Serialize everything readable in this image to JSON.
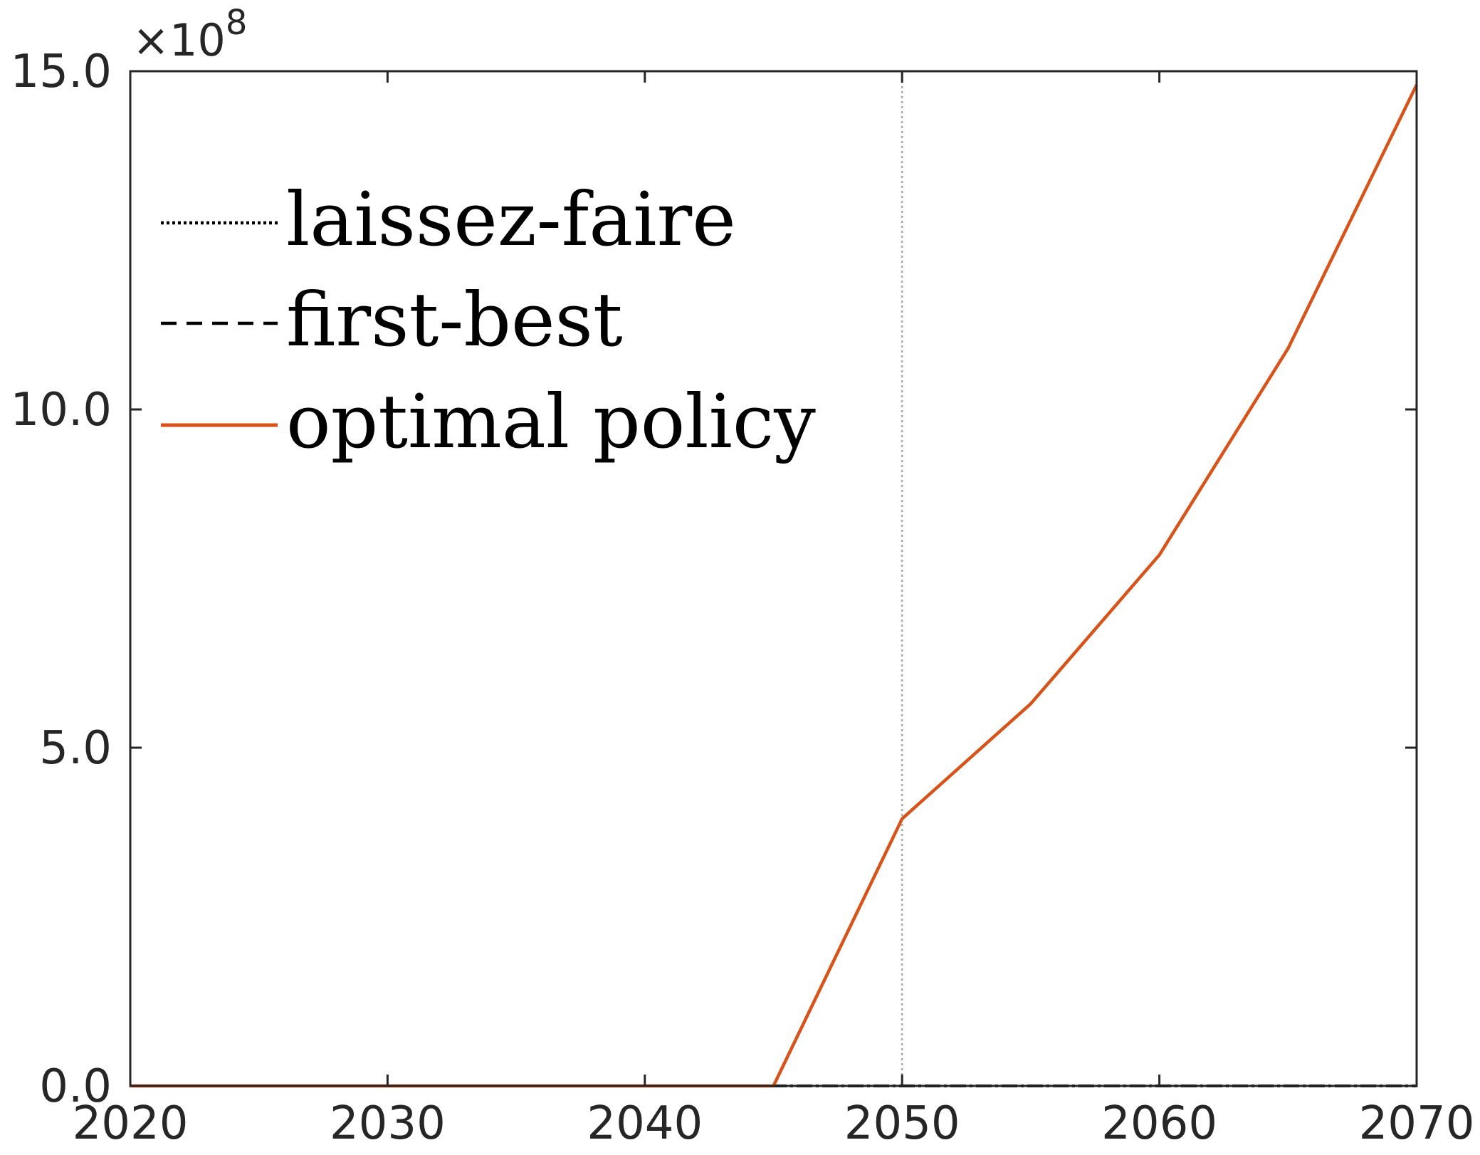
{
  "chart_data": {
    "type": "line",
    "title": "",
    "xlabel": "",
    "ylabel": "",
    "xlim": [
      2020,
      2070
    ],
    "ylim": [
      0,
      15
    ],
    "y_exponent_label": {
      "times": "×10",
      "power": "8"
    },
    "x_ticks": [
      2020,
      2030,
      2040,
      2050,
      2060,
      2070
    ],
    "x_tick_labels": [
      "2020",
      "2030",
      "2040",
      "2050",
      "2060",
      "2070"
    ],
    "y_ticks": [
      0,
      5,
      10,
      15
    ],
    "y_tick_labels": [
      "0.0",
      "5.0",
      "10.0",
      "15.0"
    ],
    "grid": false,
    "reference_line": {
      "x": 2050,
      "style": "dotted",
      "color": "#aaaaaa"
    },
    "legend_position": "top-left",
    "series": [
      {
        "name": "laissez-faire",
        "style": "dotted",
        "color": "#000000",
        "x": [
          2020,
          2025,
          2030,
          2035,
          2040,
          2045,
          2050,
          2055,
          2060,
          2065,
          2070
        ],
        "y": [
          0,
          0,
          0,
          0,
          0,
          0,
          0,
          0,
          0,
          0,
          0
        ]
      },
      {
        "name": "first-best",
        "style": "dashed",
        "color": "#000000",
        "x": [
          2020,
          2025,
          2030,
          2035,
          2040,
          2045,
          2050,
          2055,
          2060,
          2065,
          2070
        ],
        "y": [
          0,
          0,
          0,
          0,
          0,
          0,
          0,
          0,
          0,
          0,
          0
        ]
      },
      {
        "name": "optimal policy",
        "style": "solid",
        "color": "#D95319",
        "x": [
          2020,
          2025,
          2030,
          2035,
          2040,
          2045,
          2050,
          2055,
          2060,
          2065,
          2070
        ],
        "y": [
          0,
          0,
          0,
          0,
          0,
          0,
          3.95,
          5.65,
          7.85,
          10.9,
          14.8
        ]
      }
    ]
  }
}
